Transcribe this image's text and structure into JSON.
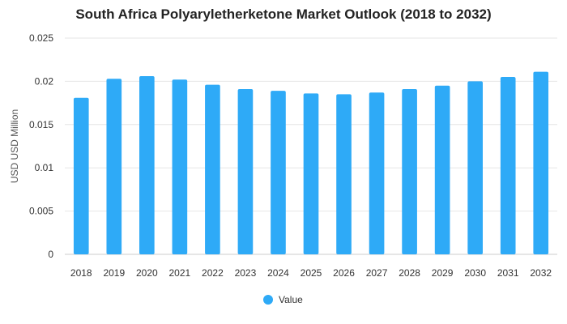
{
  "chart_data": {
    "type": "bar",
    "title": "South Africa Polyaryletherketone Market Outlook (2018 to 2032)",
    "xlabel": "",
    "ylabel": "USD USD Million",
    "ylim": [
      0,
      0.025
    ],
    "yticks": [
      "0",
      "0.005",
      "0.01",
      "0.015",
      "0.02",
      "0.025"
    ],
    "categories": [
      "2018",
      "2019",
      "2020",
      "2021",
      "2022",
      "2023",
      "2024",
      "2025",
      "2026",
      "2027",
      "2028",
      "2029",
      "2030",
      "2031",
      "2032"
    ],
    "series": [
      {
        "name": "Value",
        "color": "#2eaaf7",
        "values": [
          0.0181,
          0.0203,
          0.0206,
          0.0202,
          0.0196,
          0.0191,
          0.0189,
          0.0186,
          0.0185,
          0.0187,
          0.0191,
          0.0195,
          0.02,
          0.0205,
          0.0211
        ]
      }
    ],
    "grid": true,
    "legend": "bottom-center"
  }
}
